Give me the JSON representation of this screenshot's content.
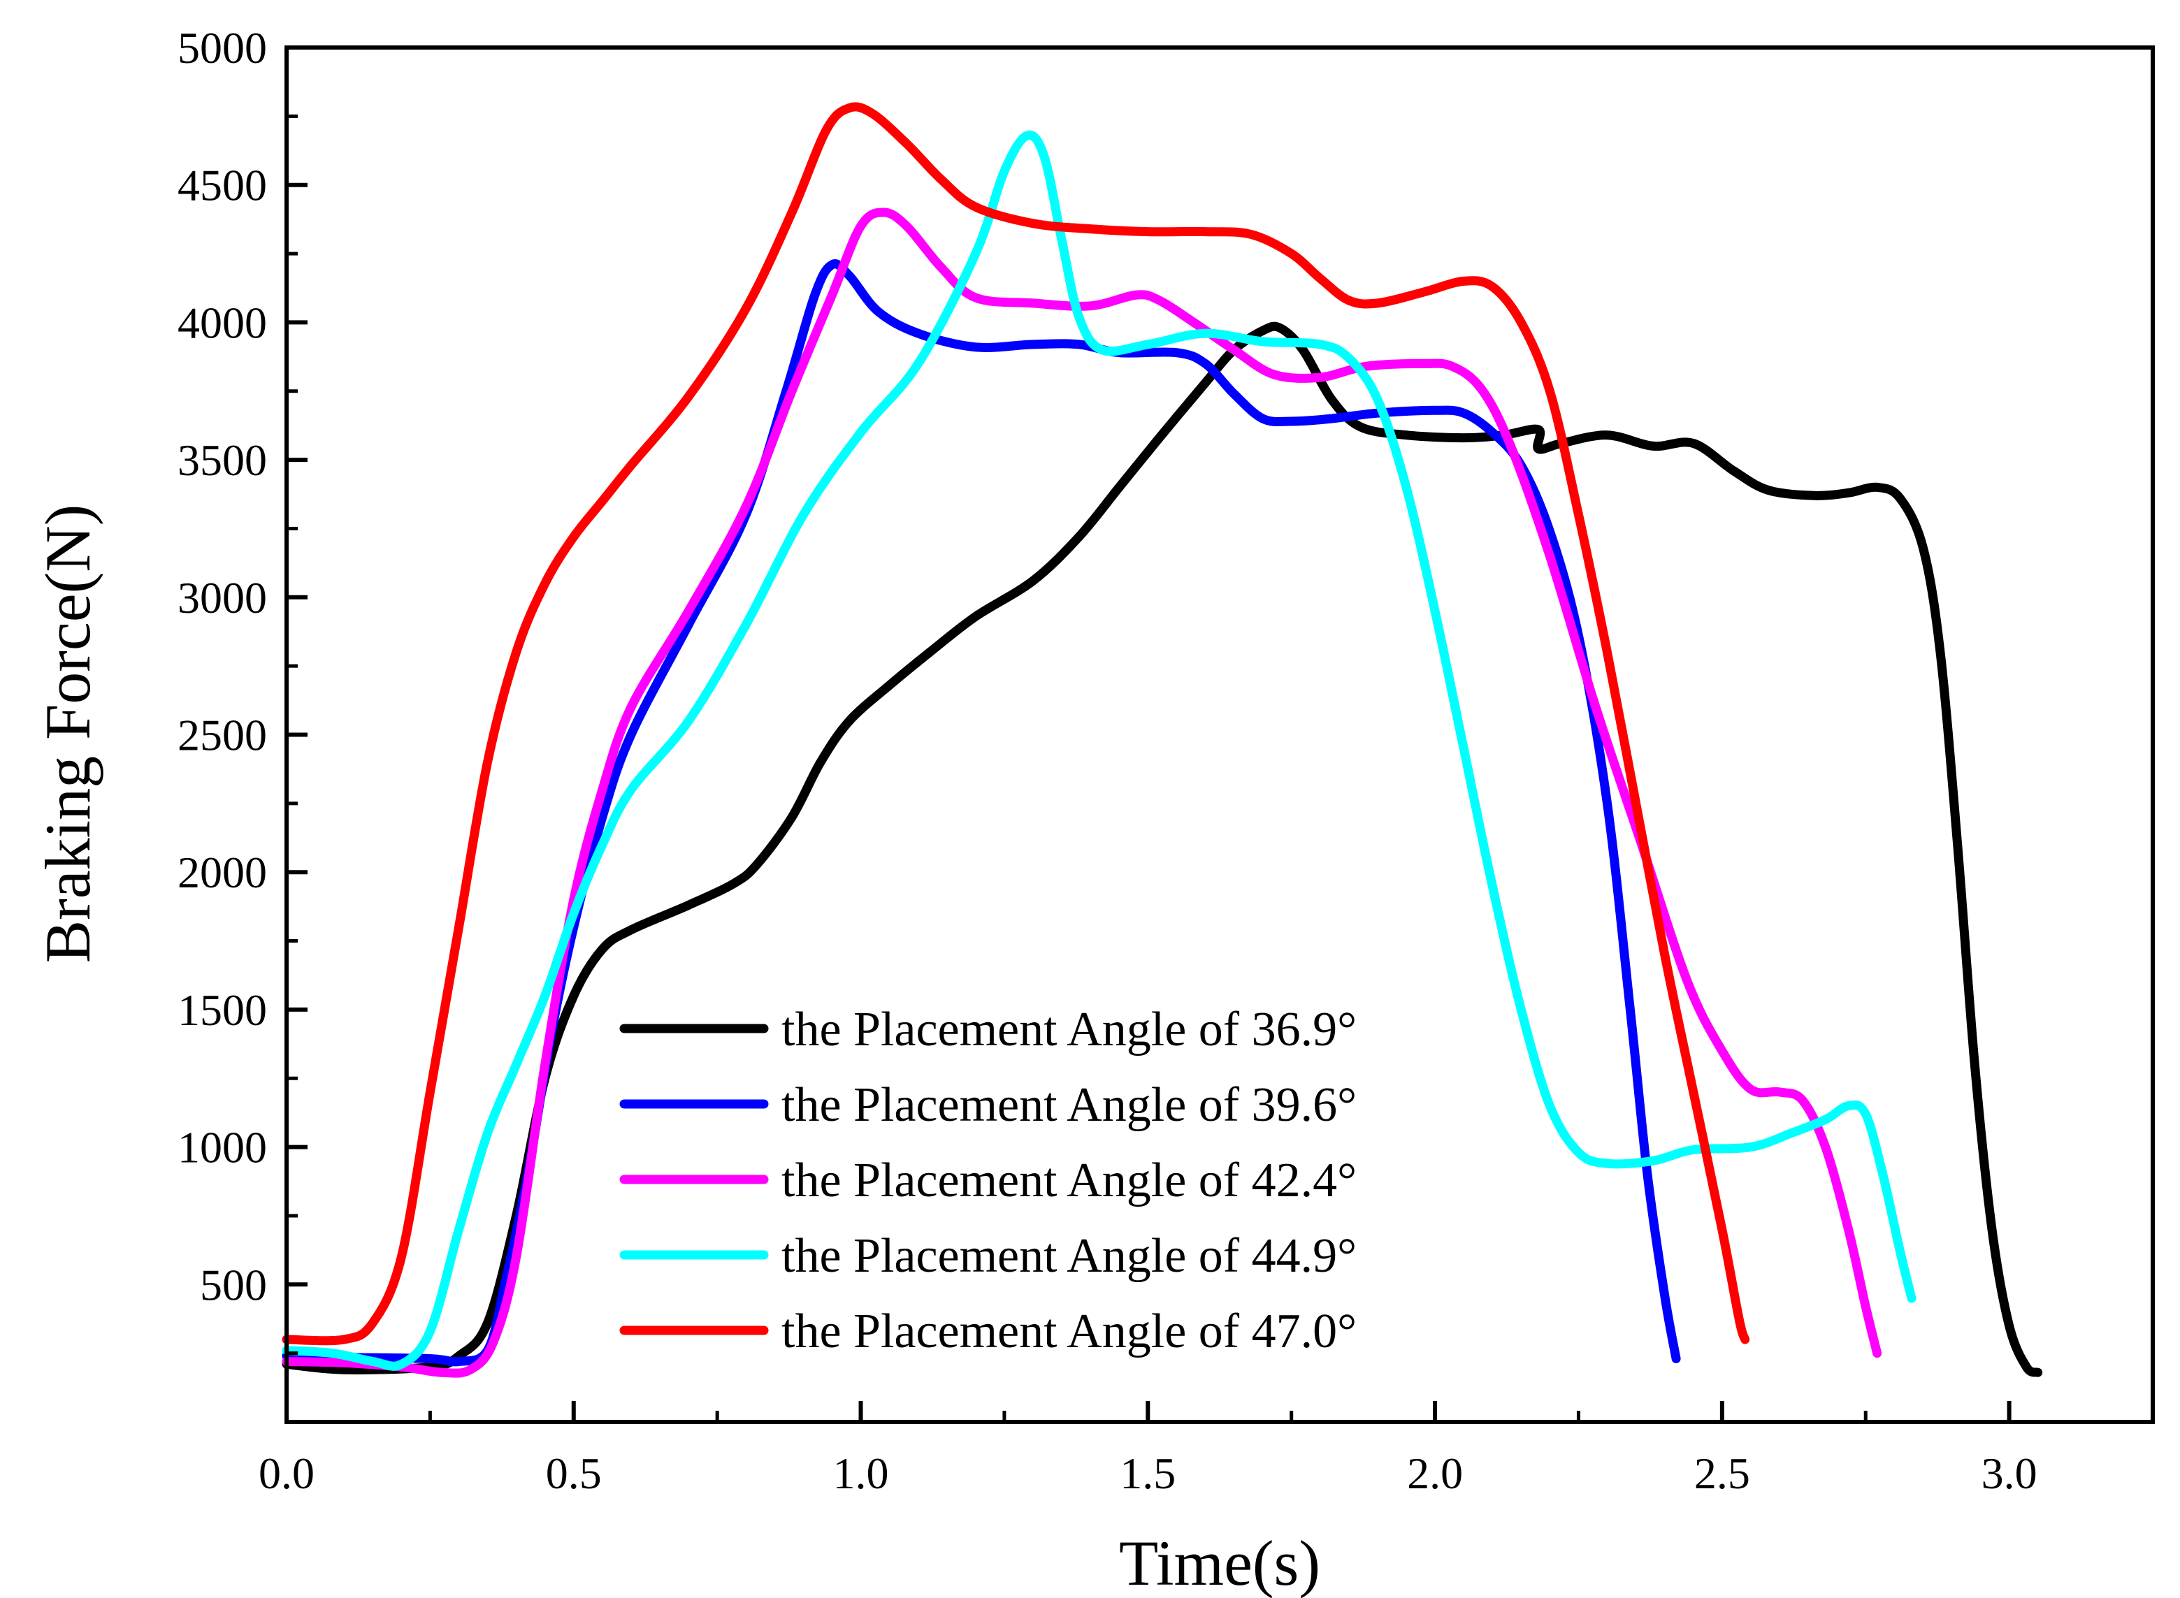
{
  "chart_data": {
    "type": "line",
    "title": "",
    "xlabel": "Time(s)",
    "ylabel": "Braking Force(N)",
    "xlim": [
      0,
      3.25
    ],
    "ylim": [
      0,
      5000
    ],
    "xticks": [
      0.0,
      0.5,
      1.0,
      1.5,
      2.0,
      2.5,
      3.0
    ],
    "xtick_labels": [
      "0.0",
      "0.5",
      "1.0",
      "1.5",
      "2.0",
      "2.5",
      "3.0"
    ],
    "yticks": [
      500,
      1000,
      1500,
      2000,
      2500,
      3000,
      3500,
      4000,
      4500,
      5000
    ],
    "ytick_labels": [
      "500",
      "1000",
      "1500",
      "2000",
      "2500",
      "3000",
      "3500",
      "4000",
      "4500",
      "5000"
    ],
    "grid": false,
    "legend_position": "bottom-center",
    "series": [
      {
        "name": "the Placement Angle of 36.9°",
        "color": "#000000",
        "points": [
          [
            0,
            210
          ],
          [
            0.1,
            190
          ],
          [
            0.25,
            200
          ],
          [
            0.3,
            240
          ],
          [
            0.35,
            360
          ],
          [
            0.4,
            750
          ],
          [
            0.45,
            1250
          ],
          [
            0.5,
            1550
          ],
          [
            0.55,
            1720
          ],
          [
            0.6,
            1790
          ],
          [
            0.7,
            1880
          ],
          [
            0.78,
            1960
          ],
          [
            0.82,
            2030
          ],
          [
            0.88,
            2200
          ],
          [
            0.93,
            2400
          ],
          [
            0.98,
            2550
          ],
          [
            1.05,
            2680
          ],
          [
            1.12,
            2800
          ],
          [
            1.2,
            2930
          ],
          [
            1.3,
            3060
          ],
          [
            1.38,
            3220
          ],
          [
            1.45,
            3400
          ],
          [
            1.52,
            3580
          ],
          [
            1.6,
            3780
          ],
          [
            1.65,
            3900
          ],
          [
            1.7,
            3970
          ],
          [
            1.73,
            3980
          ],
          [
            1.77,
            3900
          ],
          [
            1.82,
            3720
          ],
          [
            1.87,
            3620
          ],
          [
            1.95,
            3590
          ],
          [
            2.05,
            3580
          ],
          [
            2.12,
            3590
          ],
          [
            2.18,
            3610
          ],
          [
            2.18,
            3540
          ],
          [
            2.22,
            3560
          ],
          [
            2.3,
            3590
          ],
          [
            2.38,
            3550
          ],
          [
            2.45,
            3560
          ],
          [
            2.52,
            3460
          ],
          [
            2.58,
            3390
          ],
          [
            2.66,
            3370
          ],
          [
            2.72,
            3380
          ],
          [
            2.77,
            3400
          ],
          [
            2.81,
            3360
          ],
          [
            2.85,
            3180
          ],
          [
            2.88,
            2800
          ],
          [
            2.91,
            2100
          ],
          [
            2.94,
            1300
          ],
          [
            2.97,
            700
          ],
          [
            3.0,
            350
          ],
          [
            3.03,
            200
          ],
          [
            3.05,
            180
          ]
        ]
      },
      {
        "name": "the Placement Angle of 39.6°",
        "color": "#0000ff",
        "points": [
          [
            0,
            240
          ],
          [
            0.1,
            235
          ],
          [
            0.25,
            230
          ],
          [
            0.3,
            220
          ],
          [
            0.35,
            260
          ],
          [
            0.38,
            500
          ],
          [
            0.42,
            900
          ],
          [
            0.46,
            1400
          ],
          [
            0.5,
            1800
          ],
          [
            0.55,
            2200
          ],
          [
            0.6,
            2500
          ],
          [
            0.7,
            2900
          ],
          [
            0.8,
            3300
          ],
          [
            0.87,
            3750
          ],
          [
            0.92,
            4100
          ],
          [
            0.95,
            4210
          ],
          [
            0.98,
            4170
          ],
          [
            1.03,
            4040
          ],
          [
            1.1,
            3960
          ],
          [
            1.2,
            3910
          ],
          [
            1.3,
            3920
          ],
          [
            1.38,
            3920
          ],
          [
            1.45,
            3890
          ],
          [
            1.55,
            3890
          ],
          [
            1.6,
            3850
          ],
          [
            1.65,
            3740
          ],
          [
            1.7,
            3650
          ],
          [
            1.75,
            3640
          ],
          [
            1.82,
            3650
          ],
          [
            1.9,
            3670
          ],
          [
            2.0,
            3680
          ],
          [
            2.05,
            3670
          ],
          [
            2.1,
            3600
          ],
          [
            2.15,
            3480
          ],
          [
            2.2,
            3240
          ],
          [
            2.25,
            2860
          ],
          [
            2.3,
            2250
          ],
          [
            2.34,
            1500
          ],
          [
            2.37,
            900
          ],
          [
            2.4,
            460
          ],
          [
            2.42,
            230
          ]
        ]
      },
      {
        "name": "the Placement Angle of 42.4°",
        "color": "#ff00ff",
        "points": [
          [
            0,
            220
          ],
          [
            0.1,
            215
          ],
          [
            0.2,
            200
          ],
          [
            0.27,
            180
          ],
          [
            0.32,
            190
          ],
          [
            0.36,
            290
          ],
          [
            0.4,
            600
          ],
          [
            0.45,
            1300
          ],
          [
            0.5,
            1900
          ],
          [
            0.55,
            2300
          ],
          [
            0.6,
            2600
          ],
          [
            0.7,
            2950
          ],
          [
            0.8,
            3330
          ],
          [
            0.88,
            3750
          ],
          [
            0.95,
            4100
          ],
          [
            1.0,
            4350
          ],
          [
            1.04,
            4400
          ],
          [
            1.08,
            4350
          ],
          [
            1.14,
            4200
          ],
          [
            1.2,
            4090
          ],
          [
            1.3,
            4070
          ],
          [
            1.4,
            4060
          ],
          [
            1.48,
            4100
          ],
          [
            1.52,
            4080
          ],
          [
            1.58,
            4000
          ],
          [
            1.65,
            3900
          ],
          [
            1.72,
            3810
          ],
          [
            1.8,
            3800
          ],
          [
            1.88,
            3840
          ],
          [
            1.98,
            3850
          ],
          [
            2.03,
            3840
          ],
          [
            2.08,
            3760
          ],
          [
            2.13,
            3560
          ],
          [
            2.2,
            3150
          ],
          [
            2.28,
            2600
          ],
          [
            2.36,
            2100
          ],
          [
            2.44,
            1600
          ],
          [
            2.5,
            1350
          ],
          [
            2.55,
            1210
          ],
          [
            2.6,
            1200
          ],
          [
            2.64,
            1170
          ],
          [
            2.68,
            1000
          ],
          [
            2.72,
            700
          ],
          [
            2.75,
            420
          ],
          [
            2.77,
            250
          ]
        ]
      },
      {
        "name": "the Placement Angle of 44.9°",
        "color": "#00ffff",
        "points": [
          [
            0,
            260
          ],
          [
            0.08,
            250
          ],
          [
            0.15,
            220
          ],
          [
            0.2,
            210
          ],
          [
            0.25,
            330
          ],
          [
            0.3,
            700
          ],
          [
            0.35,
            1050
          ],
          [
            0.4,
            1300
          ],
          [
            0.45,
            1550
          ],
          [
            0.5,
            1850
          ],
          [
            0.55,
            2100
          ],
          [
            0.6,
            2300
          ],
          [
            0.7,
            2550
          ],
          [
            0.8,
            2900
          ],
          [
            0.9,
            3300
          ],
          [
            1.0,
            3600
          ],
          [
            1.1,
            3850
          ],
          [
            1.2,
            4250
          ],
          [
            1.25,
            4550
          ],
          [
            1.29,
            4680
          ],
          [
            1.32,
            4600
          ],
          [
            1.35,
            4300
          ],
          [
            1.38,
            4020
          ],
          [
            1.42,
            3900
          ],
          [
            1.5,
            3920
          ],
          [
            1.6,
            3960
          ],
          [
            1.7,
            3930
          ],
          [
            1.8,
            3920
          ],
          [
            1.85,
            3870
          ],
          [
            1.9,
            3720
          ],
          [
            1.95,
            3400
          ],
          [
            2.0,
            2950
          ],
          [
            2.05,
            2450
          ],
          [
            2.1,
            1950
          ],
          [
            2.15,
            1500
          ],
          [
            2.2,
            1150
          ],
          [
            2.25,
            980
          ],
          [
            2.3,
            940
          ],
          [
            2.38,
            950
          ],
          [
            2.45,
            990
          ],
          [
            2.55,
            1000
          ],
          [
            2.62,
            1050
          ],
          [
            2.68,
            1100
          ],
          [
            2.72,
            1150
          ],
          [
            2.75,
            1120
          ],
          [
            2.78,
            900
          ],
          [
            2.81,
            620
          ],
          [
            2.83,
            450
          ]
        ]
      },
      {
        "name": "the Placement Angle of 47.0°",
        "color": "#ff0000",
        "points": [
          [
            0,
            300
          ],
          [
            0.1,
            300
          ],
          [
            0.15,
            360
          ],
          [
            0.2,
            600
          ],
          [
            0.25,
            1200
          ],
          [
            0.3,
            1800
          ],
          [
            0.35,
            2400
          ],
          [
            0.4,
            2800
          ],
          [
            0.45,
            3050
          ],
          [
            0.5,
            3220
          ],
          [
            0.55,
            3350
          ],
          [
            0.6,
            3480
          ],
          [
            0.7,
            3730
          ],
          [
            0.8,
            4050
          ],
          [
            0.88,
            4400
          ],
          [
            0.94,
            4700
          ],
          [
            0.98,
            4780
          ],
          [
            1.02,
            4760
          ],
          [
            1.08,
            4650
          ],
          [
            1.14,
            4520
          ],
          [
            1.2,
            4420
          ],
          [
            1.3,
            4360
          ],
          [
            1.4,
            4340
          ],
          [
            1.5,
            4330
          ],
          [
            1.6,
            4330
          ],
          [
            1.68,
            4320
          ],
          [
            1.75,
            4250
          ],
          [
            1.8,
            4160
          ],
          [
            1.85,
            4080
          ],
          [
            1.9,
            4070
          ],
          [
            1.98,
            4110
          ],
          [
            2.05,
            4150
          ],
          [
            2.1,
            4130
          ],
          [
            2.15,
            4000
          ],
          [
            2.2,
            3750
          ],
          [
            2.25,
            3300
          ],
          [
            2.3,
            2800
          ],
          [
            2.35,
            2250
          ],
          [
            2.4,
            1700
          ],
          [
            2.45,
            1200
          ],
          [
            2.5,
            700
          ],
          [
            2.53,
            370
          ],
          [
            2.54,
            300
          ]
        ]
      }
    ]
  }
}
